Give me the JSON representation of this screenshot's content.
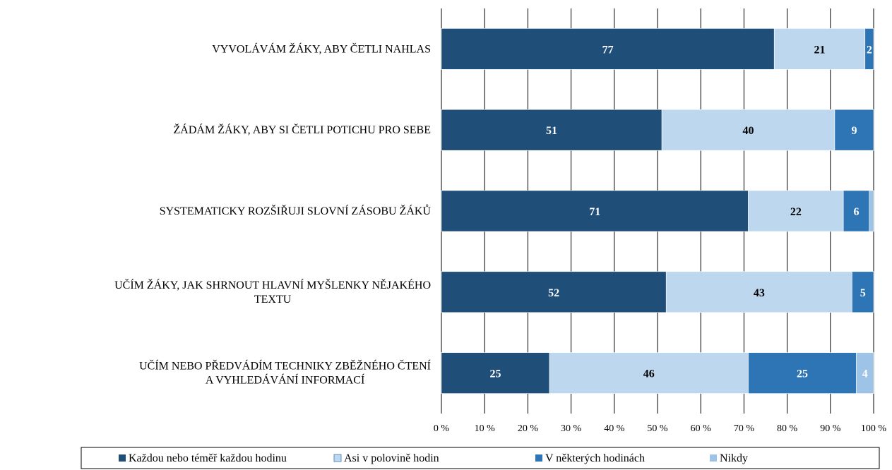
{
  "chart_data": {
    "type": "bar",
    "orientation": "horizontal",
    "stacked": true,
    "title": "",
    "xlabel": "",
    "ylabel": "",
    "xlim": [
      0,
      100
    ],
    "grid": true,
    "legend_position": "bottom",
    "x_ticks": [
      "0 %",
      "10 %",
      "20 %",
      "30 %",
      "40 %",
      "50 %",
      "60 %",
      "70 %",
      "80 %",
      "90 %",
      "100 %"
    ],
    "categories": [
      [
        "VYVOLÁVÁM ŽÁKY, ABY ČETLI NAHLAS"
      ],
      [
        "ŽÁDÁM ŽÁKY, ABY SI ČETLI POTICHU PRO SEBE"
      ],
      [
        "SYSTEMATICKY ROZŠIŘUJI SLOVNÍ ZÁSOBU ŽÁKŮ"
      ],
      [
        "UČÍM ŽÁKY, JAK SHRNOUT HLAVNÍ MYŠLENKY NĚJAKÉHO",
        "TEXTU"
      ],
      [
        "UČÍM NEBO PŘEDVÁDÍM TECHNIKY ZBĚŽNÉHO ČTENÍ",
        "A VYHLEDÁVÁNÍ INFORMACÍ"
      ]
    ],
    "series": [
      {
        "name": "Každou nebo téměř každou hodinu",
        "color": "#1f4e79",
        "label_color": "#ffffff",
        "values": [
          77,
          51,
          71,
          52,
          25
        ]
      },
      {
        "name": "Asi v polovině hodin",
        "color": "#bdd7ee",
        "label_color": "#000000",
        "values": [
          21,
          40,
          22,
          43,
          46
        ]
      },
      {
        "name": "V některých hodinách",
        "color": "#2e75b6",
        "label_color": "#ffffff",
        "values": [
          2,
          9,
          6,
          5,
          25
        ]
      },
      {
        "name": "Nikdy",
        "color": "#9dc3e6",
        "label_color": "#ffffff",
        "values": [
          0,
          0,
          1,
          0,
          4
        ]
      }
    ],
    "data_labels": [
      [
        "77",
        "21",
        "2",
        ""
      ],
      [
        "51",
        "40",
        "9",
        ""
      ],
      [
        "71",
        "22",
        "6",
        ""
      ],
      [
        "52",
        "43",
        "5",
        ""
      ],
      [
        "25",
        "46",
        "25",
        "4"
      ]
    ]
  }
}
